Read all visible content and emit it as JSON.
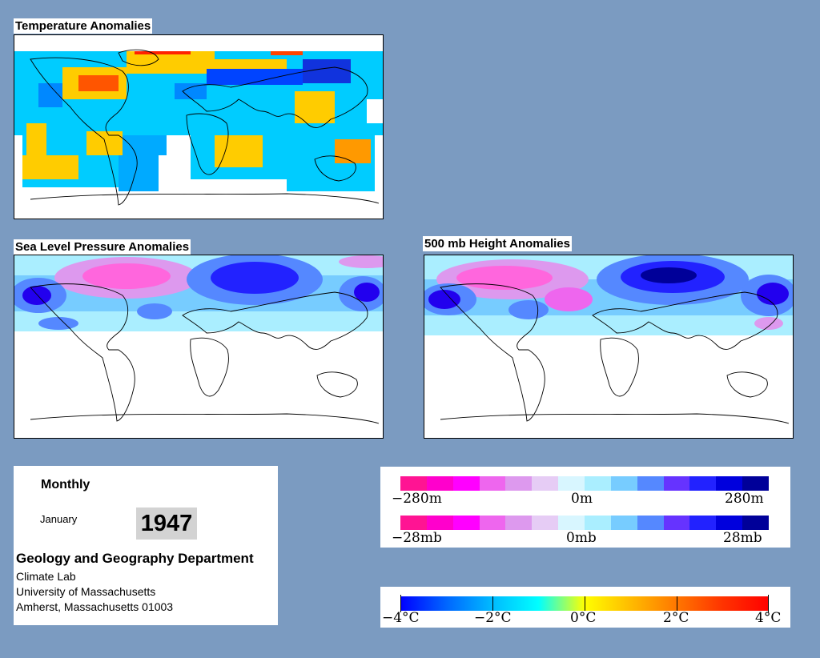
{
  "maps": {
    "temperature": {
      "title": "Temperature Anomalies"
    },
    "slp": {
      "title": "Sea Level Pressure Anomalies"
    },
    "height500": {
      "title": "500 mb Height Anomalies"
    }
  },
  "info": {
    "period": "Monthly",
    "month": "January",
    "year": "1947",
    "department": "Geology and Geography Department",
    "lab": "Climate Lab",
    "university": "University of Massachusetts",
    "address": "Amherst, Massachusetts 01003"
  },
  "legend_pressure": {
    "height_labels": {
      "min": "−280m",
      "mid": "0m",
      "max": "280m"
    },
    "slp_labels": {
      "min": "−28mb",
      "mid": "0mb",
      "max": "28mb"
    },
    "colors": [
      "#ff1493",
      "#ff00cc",
      "#ff00ff",
      "#ee66ee",
      "#dd99ee",
      "#e6ccf5",
      "#d8f6ff",
      "#aaeeff",
      "#77ccff",
      "#5588ff",
      "#6633ff",
      "#2222ff",
      "#0000dd",
      "#000099"
    ]
  },
  "legend_temperature": {
    "labels": [
      "−4°C",
      "−2°C",
      "0°C",
      "2°C",
      "4°C"
    ],
    "gradient": [
      "#0000ff",
      "#0066ff",
      "#00bbff",
      "#00ffff",
      "#ffff00",
      "#ffbb00",
      "#ff7700",
      "#ff3300",
      "#ff0000"
    ]
  },
  "colors": {
    "background": "#7b9bc1",
    "cold_strong": "#0044ff",
    "cold": "#00ccff",
    "warm": "#ffcc00",
    "warm_strong": "#ff3300",
    "low_pressure": "#2200ee",
    "high_pressure": "#ff66dd"
  }
}
